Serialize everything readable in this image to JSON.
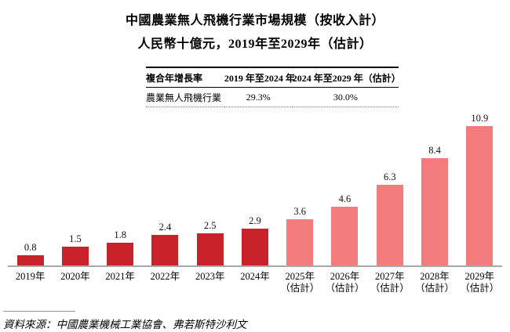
{
  "title": {
    "line1": "中國農業無人飛機行業市場規模（按收入計）",
    "line2": "人民幣十億元，2019年至2029年（估計）"
  },
  "cagr_table": {
    "headers": [
      "複合年增長率",
      "2019 年至2024 年",
      "2024 年至2029 年（估計）"
    ],
    "row": [
      "農業無人飛機行業",
      "29.3%",
      "30.0%"
    ]
  },
  "chart_data": {
    "type": "bar",
    "title": "中國農業無人飛機行業市場規模（按收入計）",
    "subtitle": "人民幣十億元，2019年至2029年（估計）",
    "unit": "人民幣十億元",
    "categories": [
      "2019年",
      "2020年",
      "2021年",
      "2022年",
      "2023年",
      "2024年",
      "2025年",
      "2026年",
      "2027年",
      "2028年",
      "2029年"
    ],
    "category_notes": [
      "",
      "",
      "",
      "",
      "",
      "",
      "（估計）",
      "（估計）",
      "（估計）",
      "（估計）",
      "（估計）"
    ],
    "values": [
      0.8,
      1.5,
      1.8,
      2.4,
      2.5,
      2.9,
      3.6,
      4.6,
      6.3,
      8.4,
      10.9
    ],
    "estimate_flags": [
      false,
      false,
      false,
      false,
      false,
      false,
      true,
      true,
      true,
      true,
      true
    ],
    "actual_color": "#c8232b",
    "estimate_color": "#f27c7c",
    "axis_line_color": "#a8a8a8",
    "ylim": [
      0,
      11
    ],
    "grid": false,
    "legend": false,
    "value_labels": true
  },
  "footer": {
    "source": "資料來源：中國農業機械工業協會、弗若斯特沙利文"
  }
}
